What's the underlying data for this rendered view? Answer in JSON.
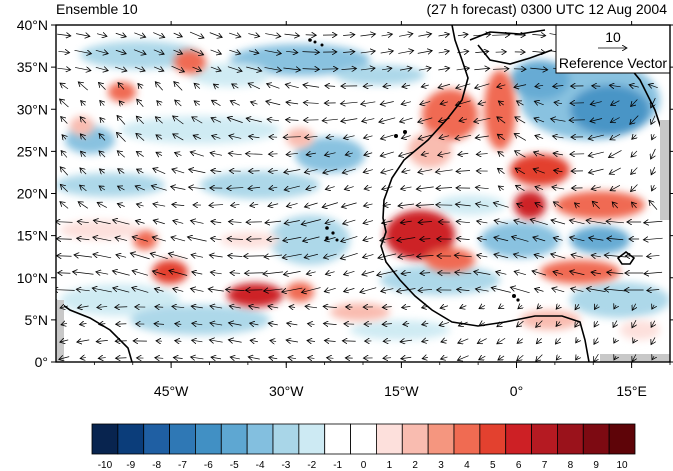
{
  "header": {
    "left_title": "Ensemble 10",
    "right_title": "(27 h forecast) 0300 UTC 12 Aug 2004"
  },
  "axes": {
    "lat_labels": [
      "40°N",
      "35°N",
      "30°N",
      "25°N",
      "20°N",
      "15°N",
      "10°N",
      "5°N",
      "0°"
    ],
    "lon_labels": [
      "45°W",
      "30°W",
      "15°W",
      "0°",
      "15°E"
    ],
    "lat_range": [
      0,
      40
    ],
    "lon_range": [
      -60,
      20
    ]
  },
  "reference_vector": {
    "value": "10",
    "label": "Reference Vector"
  },
  "colorbar": {
    "labels": [
      "-10",
      "-9",
      "-8",
      "-7",
      "-6",
      "-5",
      "-4",
      "-3",
      "-2",
      "-1",
      "0",
      "1",
      "2",
      "3",
      "4",
      "5",
      "6",
      "7",
      "8",
      "9",
      "10"
    ],
    "colors": [
      "#08244f",
      "#0b3d7a",
      "#1f5fa3",
      "#2f78b5",
      "#4190c4",
      "#5ea7d2",
      "#83bfdf",
      "#a9d6e8",
      "#cdeaf3",
      "#ffffff",
      "#ffffff",
      "#fde0dc",
      "#f9bcb0",
      "#f5967f",
      "#f06b52",
      "#e3412f",
      "#cd2025",
      "#b51a22",
      "#9a121b",
      "#7d0a12",
      "#5e0408"
    ]
  },
  "field": {
    "warm_colors": [
      "#fde0dc",
      "#f9bcb0",
      "#f06b52",
      "#cd2025"
    ],
    "cool_colors": [
      "#cdeaf3",
      "#a9d6e8",
      "#83bfdf",
      "#4190c4"
    ]
  }
}
